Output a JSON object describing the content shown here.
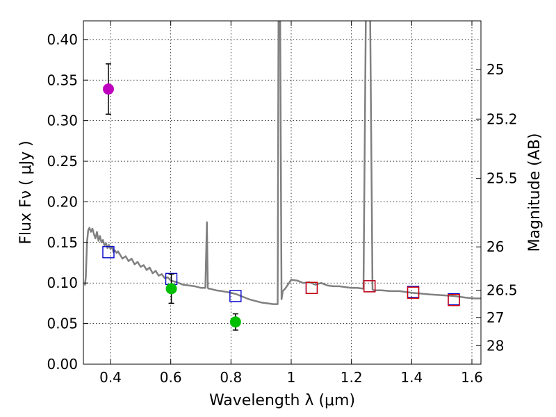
{
  "chart_data": {
    "type": "scatter",
    "xlabel": "Wavelength  λ (μm)",
    "ylabel": "Flux  Fν  ( μJy )",
    "y2label": "Magnitude (AB)",
    "xlim": [
      0.31,
      1.63
    ],
    "ylim": [
      0.0,
      0.423
    ],
    "grid": true,
    "x_ticks": [
      0.4,
      0.6,
      0.8,
      1.0,
      1.2,
      1.4,
      1.6
    ],
    "x_tick_labels": [
      "0.4",
      "0.6",
      "0.8",
      "1",
      "1.2",
      "1.4",
      "1.6"
    ],
    "y_ticks": [
      0.0,
      0.05,
      0.1,
      0.15,
      0.2,
      0.25,
      0.3,
      0.35,
      0.4
    ],
    "y_tick_labels": [
      "0.00",
      "0.05",
      "0.10",
      "0.15",
      "0.20",
      "0.25",
      "0.30",
      "0.35",
      "0.40"
    ],
    "y2_ticks": [
      {
        "label": "25",
        "flux": 0.3631
      },
      {
        "label": "25.2",
        "flux": 0.302
      },
      {
        "label": "25.5",
        "flux": 0.2291
      },
      {
        "label": "26",
        "flux": 0.1445
      },
      {
        "label": "26.5",
        "flux": 0.0912
      },
      {
        "label": "27",
        "flux": 0.0575
      },
      {
        "label": "28",
        "flux": 0.0229
      }
    ],
    "series": [
      {
        "name": "model spectrum",
        "kind": "line",
        "color": "#808080",
        "x": [
          0.315,
          0.318,
          0.322,
          0.326,
          0.33,
          0.335,
          0.34,
          0.345,
          0.35,
          0.355,
          0.36,
          0.365,
          0.37,
          0.375,
          0.38,
          0.385,
          0.39,
          0.395,
          0.4,
          0.405,
          0.41,
          0.415,
          0.42,
          0.425,
          0.43,
          0.44,
          0.45,
          0.46,
          0.47,
          0.48,
          0.49,
          0.5,
          0.51,
          0.52,
          0.53,
          0.54,
          0.55,
          0.56,
          0.57,
          0.58,
          0.59,
          0.6,
          0.62,
          0.64,
          0.66,
          0.68,
          0.7,
          0.715,
          0.72,
          0.723,
          0.726,
          0.73,
          0.75,
          0.77,
          0.8,
          0.82,
          0.84,
          0.86,
          0.88,
          0.9,
          0.92,
          0.94,
          0.955,
          0.958,
          0.963,
          0.968,
          0.972,
          0.98,
          1.0,
          1.02,
          1.04,
          1.06,
          1.08,
          1.1,
          1.12,
          1.14,
          1.16,
          1.18,
          1.2,
          1.22,
          1.24,
          1.248,
          1.255,
          1.262,
          1.27,
          1.275,
          1.3,
          1.33,
          1.36,
          1.4,
          1.43,
          1.46,
          1.5,
          1.54,
          1.58,
          1.61,
          1.63
        ],
        "y": [
          0.097,
          0.108,
          0.15,
          0.165,
          0.168,
          0.163,
          0.167,
          0.16,
          0.155,
          0.163,
          0.152,
          0.158,
          0.15,
          0.153,
          0.146,
          0.149,
          0.143,
          0.147,
          0.142,
          0.145,
          0.138,
          0.14,
          0.137,
          0.139,
          0.136,
          0.13,
          0.133,
          0.127,
          0.13,
          0.123,
          0.126,
          0.12,
          0.122,
          0.116,
          0.119,
          0.112,
          0.115,
          0.109,
          0.111,
          0.106,
          0.107,
          0.103,
          0.101,
          0.098,
          0.097,
          0.096,
          0.094,
          0.094,
          0.175,
          0.094,
          0.093,
          0.093,
          0.091,
          0.09,
          0.088,
          0.086,
          0.083,
          0.08,
          0.078,
          0.076,
          0.075,
          0.074,
          0.074,
          0.44,
          0.44,
          0.08,
          0.09,
          0.093,
          0.104,
          0.103,
          0.1,
          0.101,
          0.098,
          0.1,
          0.097,
          0.096,
          0.096,
          0.095,
          0.094,
          0.094,
          0.093,
          0.44,
          0.44,
          0.44,
          0.092,
          0.091,
          0.091,
          0.09,
          0.09,
          0.088,
          0.087,
          0.086,
          0.085,
          0.084,
          0.082,
          0.081,
          0.081
        ]
      },
      {
        "name": "observed (magenta)",
        "kind": "point",
        "color": "#bf00bf",
        "x": [
          0.393
        ],
        "y": [
          0.339
        ],
        "yerr": [
          0.031
        ]
      },
      {
        "name": "observed (green)",
        "kind": "point",
        "color": "#00bf00",
        "x": [
          0.602,
          0.815
        ],
        "y": [
          0.093,
          0.052
        ],
        "yerr": [
          0.018,
          0.01
        ]
      },
      {
        "name": "model photometry (blue squares)",
        "kind": "square",
        "color": "#0000cc",
        "x": [
          0.393,
          0.602,
          0.815,
          1.068,
          1.26,
          1.405,
          1.54
        ],
        "y": [
          0.138,
          0.105,
          0.084,
          0.094,
          0.096,
          0.089,
          0.08
        ]
      },
      {
        "name": "model photometry (red squares)",
        "kind": "square",
        "color": "#d40000",
        "x": [
          1.068,
          1.26,
          1.405,
          1.54
        ],
        "y": [
          0.094,
          0.096,
          0.088,
          0.079
        ]
      }
    ]
  }
}
